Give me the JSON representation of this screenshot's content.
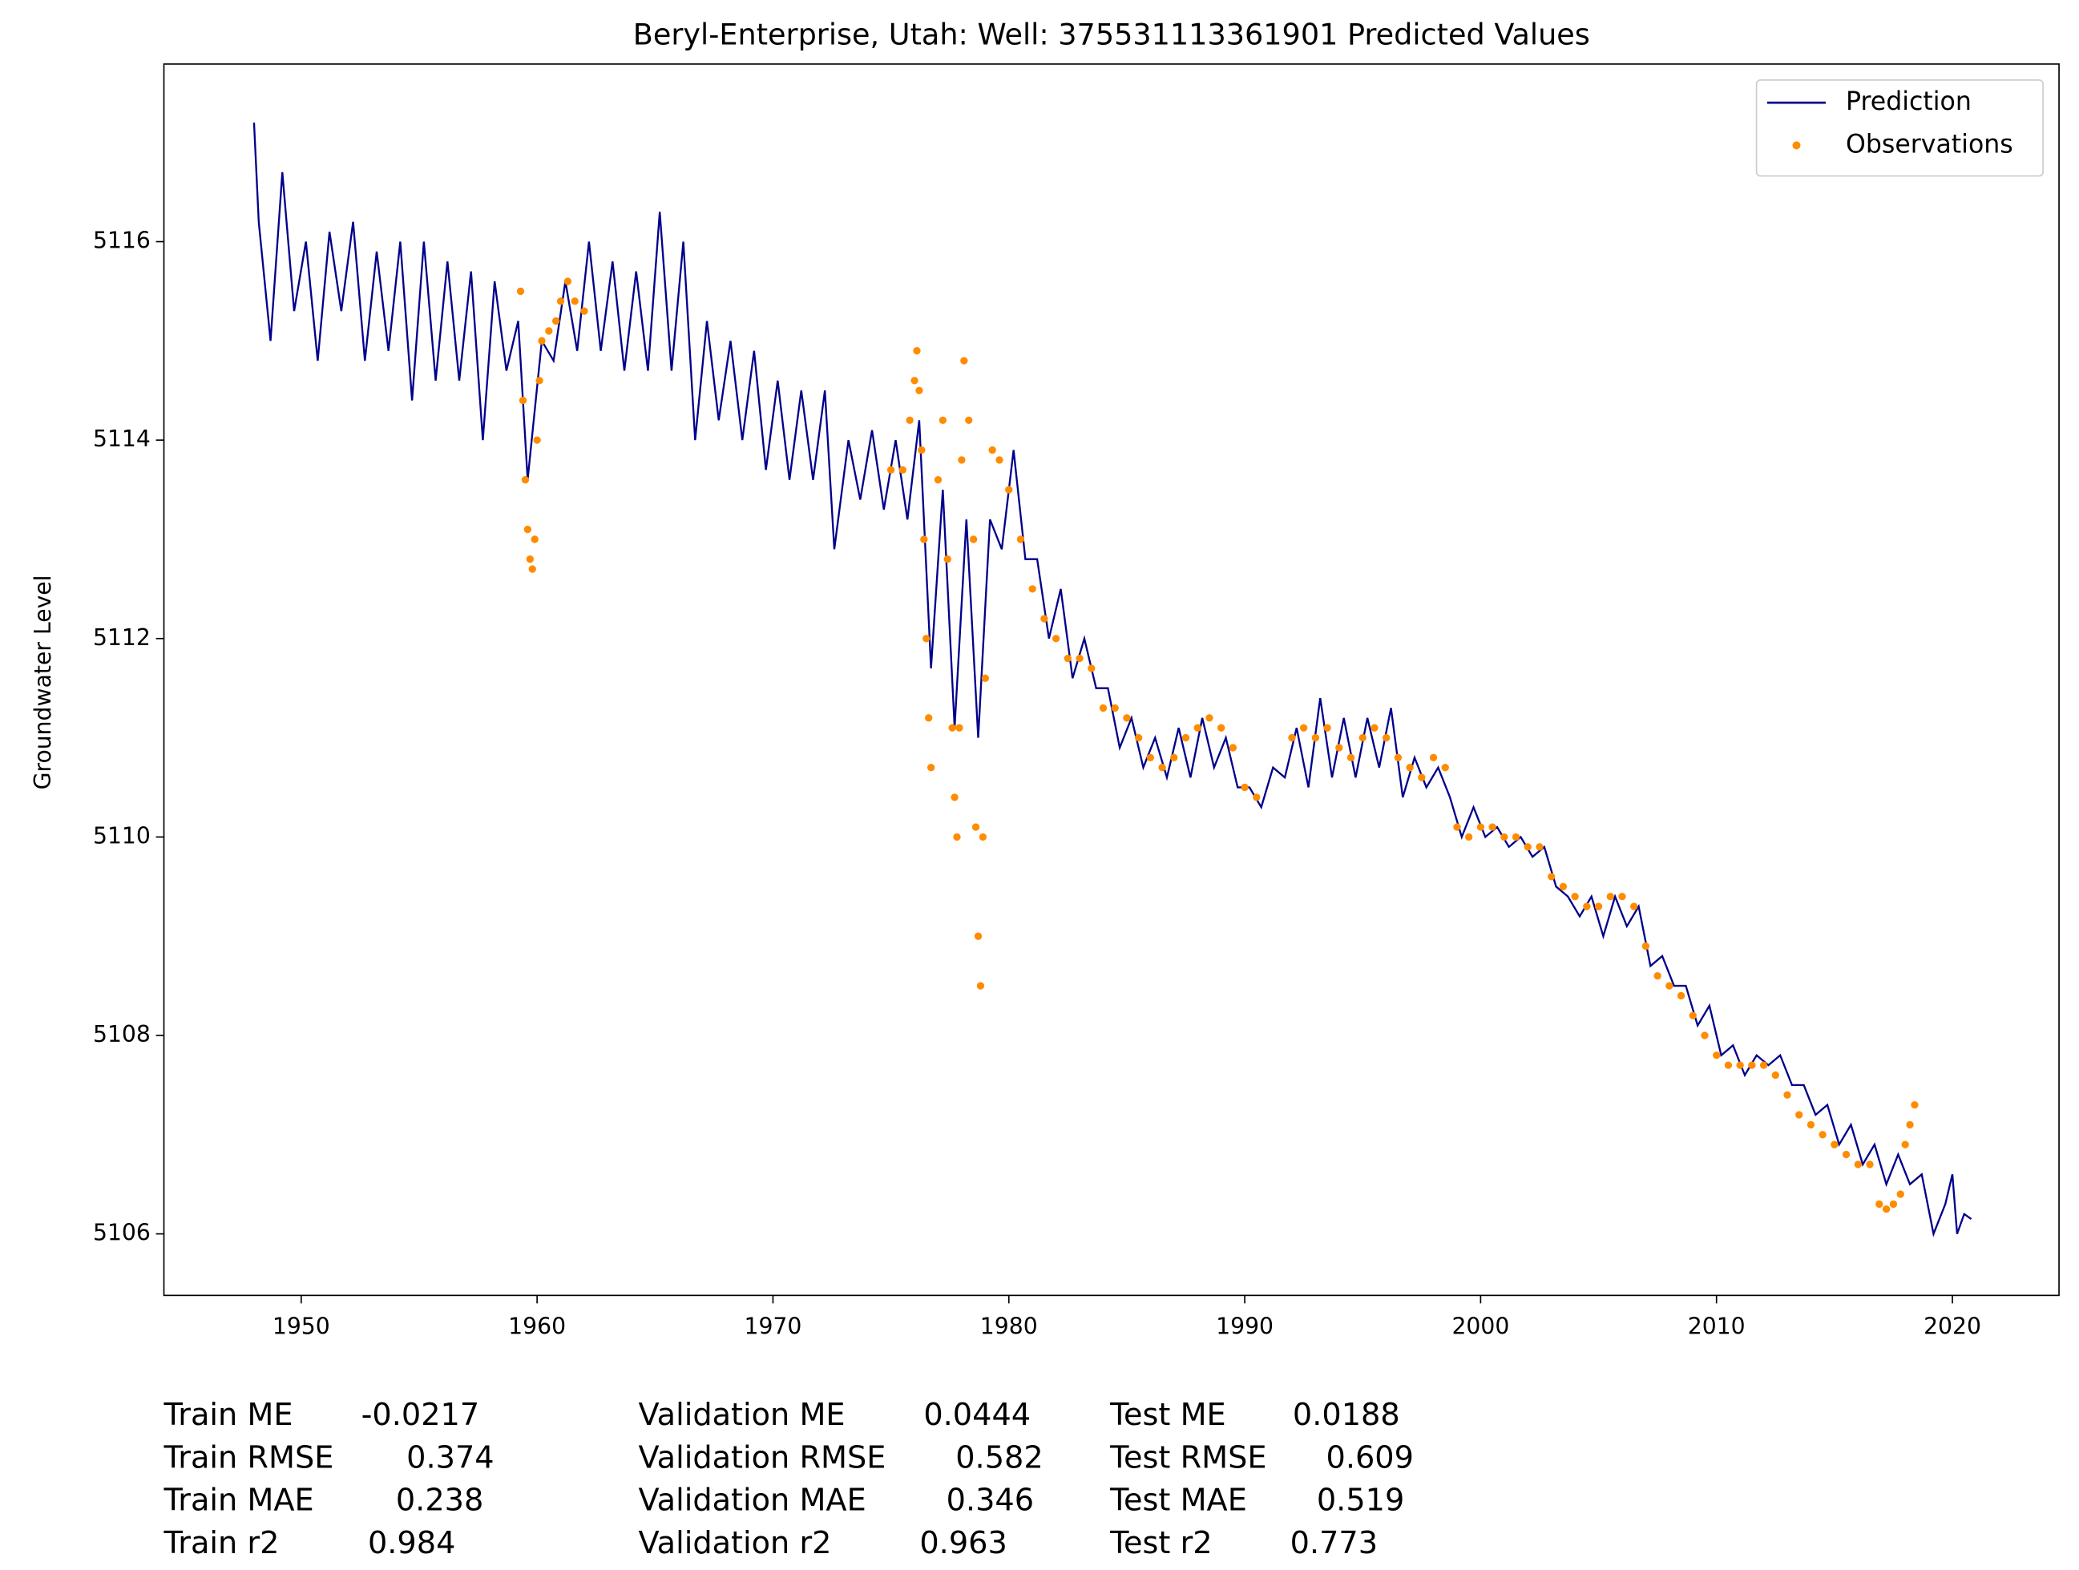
{
  "chart_data": {
    "type": "line",
    "title": "Beryl-Enterprise, Utah: Well: 375531113361901 Predicted Values",
    "ylabel": "Groundwater Level",
    "xlim": [
      1944.18,
      2024.52
    ],
    "ylim": [
      5105.38,
      5117.79
    ],
    "xticks": [
      1950,
      1960,
      1970,
      1980,
      1990,
      2000,
      2010,
      2020
    ],
    "yticks": [
      5106,
      5108,
      5110,
      5112,
      5114,
      5116
    ],
    "legend": "upper right",
    "series": [
      {
        "name": "Prediction",
        "kind": "line",
        "color": "#00008b",
        "x": [
          1948.0,
          1948.2,
          1948.7,
          1949.2,
          1949.7,
          1950.2,
          1950.7,
          1951.2,
          1951.7,
          1952.2,
          1952.7,
          1953.2,
          1953.7,
          1954.2,
          1954.7,
          1955.2,
          1955.7,
          1956.2,
          1956.7,
          1957.2,
          1957.7,
          1958.2,
          1958.7,
          1959.2,
          1959.6,
          1960.2,
          1960.7,
          1961.2,
          1961.7,
          1962.2,
          1962.7,
          1963.2,
          1963.7,
          1964.2,
          1964.7,
          1965.2,
          1965.7,
          1966.2,
          1966.7,
          1967.2,
          1967.7,
          1968.2,
          1968.7,
          1969.2,
          1969.7,
          1970.2,
          1970.7,
          1971.2,
          1971.7,
          1972.2,
          1972.6,
          1973.2,
          1973.7,
          1974.2,
          1974.7,
          1975.2,
          1975.7,
          1976.2,
          1976.7,
          1977.2,
          1977.7,
          1978.2,
          1978.7,
          1979.2,
          1979.7,
          1980.2,
          1980.7,
          1981.2,
          1981.7,
          1982.2,
          1982.7,
          1983.2,
          1983.7,
          1984.2,
          1984.7,
          1985.2,
          1985.7,
          1986.2,
          1986.7,
          1987.2,
          1987.7,
          1988.2,
          1988.7,
          1989.2,
          1989.7,
          1990.2,
          1990.7,
          1991.2,
          1991.7,
          1992.2,
          1992.7,
          1993.2,
          1993.7,
          1994.2,
          1994.7,
          1995.2,
          1995.7,
          1996.2,
          1996.7,
          1997.2,
          1997.7,
          1998.2,
          1998.7,
          1999.2,
          1999.7,
          2000.2,
          2000.7,
          2001.2,
          2001.7,
          2002.2,
          2002.7,
          2003.2,
          2003.7,
          2004.2,
          2004.7,
          2005.2,
          2005.7,
          2006.2,
          2006.7,
          2007.2,
          2007.7,
          2008.2,
          2008.7,
          2009.2,
          2009.7,
          2010.2,
          2010.7,
          2011.2,
          2011.7,
          2012.2,
          2012.7,
          2013.2,
          2013.7,
          2014.2,
          2014.7,
          2015.2,
          2015.7,
          2016.2,
          2016.7,
          2017.2,
          2017.7,
          2018.2,
          2018.7,
          2019.2,
          2019.7,
          2020.0,
          2020.2,
          2020.5,
          2020.8
        ],
        "values": [
          5117.2,
          5116.2,
          5115.0,
          5116.7,
          5115.3,
          5116.0,
          5114.8,
          5116.1,
          5115.3,
          5116.2,
          5114.8,
          5115.9,
          5114.9,
          5116.0,
          5114.4,
          5116.0,
          5114.6,
          5115.8,
          5114.6,
          5115.7,
          5114.0,
          5115.6,
          5114.7,
          5115.2,
          5113.6,
          5115.0,
          5114.8,
          5115.6,
          5114.9,
          5116.0,
          5114.9,
          5115.8,
          5114.7,
          5115.7,
          5114.7,
          5116.3,
          5114.7,
          5116.0,
          5114.0,
          5115.2,
          5114.2,
          5115.0,
          5114.0,
          5114.9,
          5113.7,
          5114.6,
          5113.6,
          5114.5,
          5113.6,
          5114.5,
          5112.9,
          5114.0,
          5113.4,
          5114.1,
          5113.3,
          5114.0,
          5113.2,
          5114.2,
          5111.7,
          5113.5,
          5111.1,
          5113.2,
          5111.0,
          5113.2,
          5112.9,
          5113.9,
          5112.8,
          5112.8,
          5112.0,
          5112.5,
          5111.6,
          5112.0,
          5111.5,
          5111.5,
          5110.9,
          5111.2,
          5110.7,
          5111.0,
          5110.6,
          5111.1,
          5110.6,
          5111.2,
          5110.7,
          5111.0,
          5110.5,
          5110.5,
          5110.3,
          5110.7,
          5110.6,
          5111.1,
          5110.5,
          5111.4,
          5110.6,
          5111.2,
          5110.6,
          5111.2,
          5110.7,
          5111.3,
          5110.4,
          5110.8,
          5110.5,
          5110.7,
          5110.4,
          5110.0,
          5110.3,
          5110.0,
          5110.1,
          5109.9,
          5110.0,
          5109.8,
          5109.9,
          5109.5,
          5109.4,
          5109.2,
          5109.4,
          5109.0,
          5109.4,
          5109.1,
          5109.3,
          5108.7,
          5108.8,
          5108.5,
          5108.5,
          5108.1,
          5108.3,
          5107.8,
          5107.9,
          5107.6,
          5107.8,
          5107.7,
          5107.8,
          5107.5,
          5107.5,
          5107.2,
          5107.3,
          5106.9,
          5107.1,
          5106.7,
          5106.9,
          5106.5,
          5106.8,
          5106.5,
          5106.6,
          5106.0,
          5106.3,
          5106.6,
          5106.0,
          5106.2,
          5106.15
        ]
      },
      {
        "name": "Observations",
        "kind": "scatter",
        "color": "#ff8c00",
        "x": [
          1959.3,
          1959.4,
          1959.5,
          1959.6,
          1959.7,
          1959.8,
          1959.9,
          1960.0,
          1960.1,
          1960.2,
          1960.5,
          1960.8,
          1961.0,
          1961.3,
          1961.6,
          1962.0,
          1975.0,
          1975.5,
          1975.8,
          1976.0,
          1976.1,
          1976.2,
          1976.3,
          1976.4,
          1976.5,
          1976.6,
          1976.7,
          1977.0,
          1977.2,
          1977.4,
          1977.6,
          1977.7,
          1977.8,
          1977.9,
          1978.0,
          1978.1,
          1978.3,
          1978.5,
          1978.6,
          1978.7,
          1978.8,
          1978.9,
          1979.0,
          1979.3,
          1979.6,
          1980.0,
          1980.5,
          1981.0,
          1981.5,
          1982.0,
          1982.5,
          1983.0,
          1983.5,
          1984.0,
          1984.5,
          1985.0,
          1985.5,
          1986.0,
          1986.5,
          1987.0,
          1987.5,
          1988.0,
          1988.5,
          1989.0,
          1989.5,
          1990.0,
          1990.5,
          1992.0,
          1992.5,
          1993.0,
          1993.5,
          1994.0,
          1994.5,
          1995.0,
          1995.5,
          1996.0,
          1996.5,
          1997.0,
          1997.5,
          1998.0,
          1998.5,
          1999.0,
          1999.5,
          2000.0,
          2000.5,
          2001.0,
          2001.5,
          2002.0,
          2002.5,
          2003.0,
          2003.5,
          2004.0,
          2004.5,
          2005.0,
          2005.5,
          2006.0,
          2006.5,
          2007.0,
          2007.5,
          2008.0,
          2008.5,
          2009.0,
          2009.5,
          2010.0,
          2010.5,
          2011.0,
          2011.5,
          2012.0,
          2012.5,
          2013.0,
          2013.5,
          2014.0,
          2014.5,
          2015.0,
          2015.5,
          2016.0,
          2016.5,
          2016.9,
          2017.2,
          2017.5,
          2017.8,
          2018.0,
          2018.2,
          2018.4
        ],
        "values": [
          5115.5,
          5114.4,
          5113.6,
          5113.1,
          5112.8,
          5112.7,
          5113.0,
          5114.0,
          5114.6,
          5115.0,
          5115.1,
          5115.2,
          5115.4,
          5115.6,
          5115.4,
          5115.3,
          5113.7,
          5113.7,
          5114.2,
          5114.6,
          5114.9,
          5114.5,
          5113.9,
          5113.0,
          5112.0,
          5111.2,
          5110.7,
          5113.6,
          5114.2,
          5112.8,
          5111.1,
          5110.4,
          5110.0,
          5111.1,
          5113.8,
          5114.8,
          5114.2,
          5113.0,
          5110.1,
          5109.0,
          5108.5,
          5110.0,
          5111.6,
          5113.9,
          5113.8,
          5113.5,
          5113.0,
          5112.5,
          5112.2,
          5112.0,
          5111.8,
          5111.8,
          5111.7,
          5111.3,
          5111.3,
          5111.2,
          5111.0,
          5110.8,
          5110.7,
          5110.8,
          5111.0,
          5111.1,
          5111.2,
          5111.1,
          5110.9,
          5110.5,
          5110.4,
          5111.0,
          5111.1,
          5111.0,
          5111.1,
          5110.9,
          5110.8,
          5111.0,
          5111.1,
          5111.0,
          5110.8,
          5110.7,
          5110.6,
          5110.8,
          5110.7,
          5110.1,
          5110.0,
          5110.1,
          5110.1,
          5110.0,
          5110.0,
          5109.9,
          5109.9,
          5109.6,
          5109.5,
          5109.4,
          5109.3,
          5109.3,
          5109.4,
          5109.4,
          5109.3,
          5108.9,
          5108.6,
          5108.5,
          5108.4,
          5108.2,
          5108.0,
          5107.8,
          5107.7,
          5107.7,
          5107.7,
          5107.7,
          5107.6,
          5107.4,
          5107.2,
          5107.1,
          5107.0,
          5106.9,
          5106.8,
          5106.7,
          5106.7,
          5106.3,
          5106.25,
          5106.3,
          5106.4,
          5106.9,
          5107.1,
          5107.3
        ]
      }
    ],
    "stats": [
      [
        {
          "label": "Train ME",
          "value": -0.0217
        },
        {
          "label": "Train RMSE",
          "value": 0.374
        },
        {
          "label": "Train MAE",
          "value": 0.238
        },
        {
          "label": "Train r2",
          "value": 0.984
        }
      ],
      [
        {
          "label": "Validation ME",
          "value": 0.0444
        },
        {
          "label": "Validation RMSE",
          "value": 0.582
        },
        {
          "label": "Validation MAE",
          "value": 0.346
        },
        {
          "label": "Validation r2",
          "value": 0.963
        }
      ],
      [
        {
          "label": "Test ME",
          "value": 0.0188
        },
        {
          "label": "Test RMSE",
          "value": 0.609
        },
        {
          "label": "Test MAE",
          "value": 0.519
        },
        {
          "label": "Test r2",
          "value": 0.773
        }
      ]
    ]
  }
}
